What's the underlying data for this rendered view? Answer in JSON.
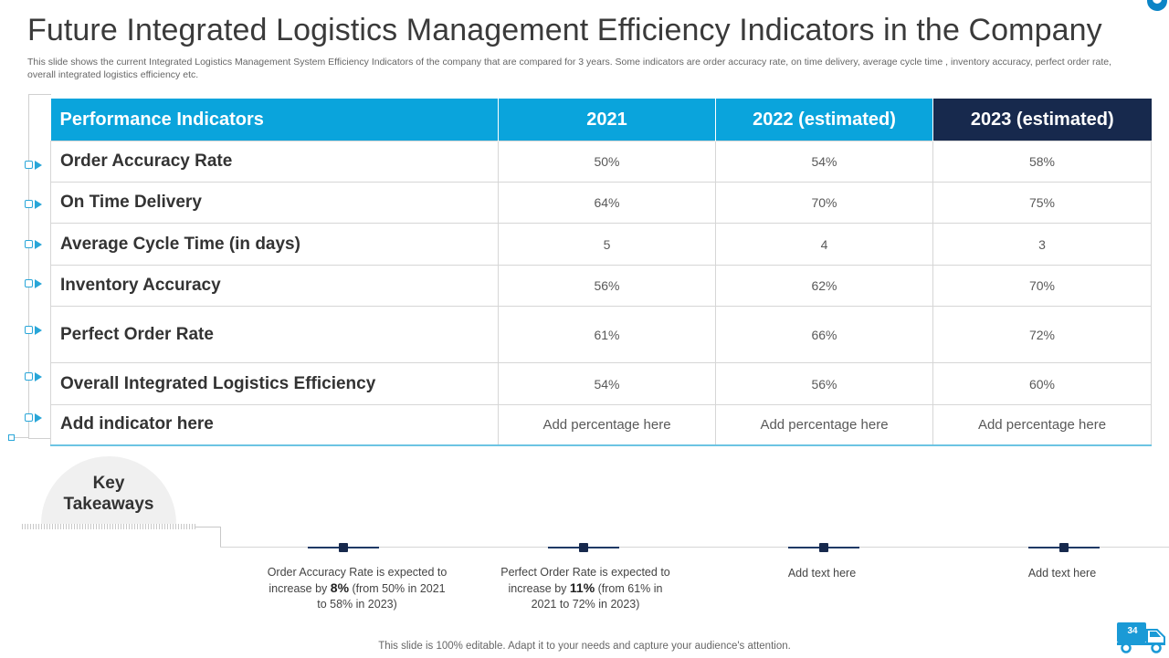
{
  "title": "Future Integrated Logistics Management Efficiency Indicators in the Company",
  "subtitle": "This slide shows the current Integrated Logistics Management System Efficiency Indicators of the company that are compared for 3 years. Some indicators are order accuracy rate, on time delivery, average cycle time , inventory accuracy, perfect order rate, overall integrated logistics efficiency etc.",
  "table": {
    "headers": [
      "Performance  Indicators",
      "2021",
      "2022 (estimated)",
      "2023 (estimated)"
    ],
    "rows": [
      {
        "label": "Order Accuracy Rate",
        "values": [
          "50%",
          "54%",
          "58%"
        ]
      },
      {
        "label": "On Time Delivery",
        "values": [
          "64%",
          "70%",
          "75%"
        ]
      },
      {
        "label": "Average Cycle Time (in days)",
        "values": [
          "5",
          "4",
          "3"
        ]
      },
      {
        "label": "Inventory Accuracy",
        "values": [
          "56%",
          "62%",
          "70%"
        ]
      },
      {
        "label": "Perfect Order Rate",
        "values": [
          "61%",
          "66%",
          "72%"
        ]
      },
      {
        "label": "Overall Integrated Logistics Efficiency",
        "values": [
          "54%",
          "56%",
          "60%"
        ]
      },
      {
        "label": "Add indicator here",
        "values": [
          "Add percentage here",
          "Add percentage here",
          "Add percentage here"
        ]
      }
    ]
  },
  "key_takeaways": {
    "title_line1": "Key",
    "title_line2": "Takeaways",
    "items": [
      {
        "pre": "Order Accuracy Rate is expected to increase by ",
        "bold": "8%",
        "post": " (from 50% in 2021 to 58% in 2023)"
      },
      {
        "pre": "Perfect Order Rate is expected to increase by ",
        "bold": "11%",
        "post": " (from 61% in 2021 to 72% in 2023)"
      },
      {
        "pre": "Add text here",
        "bold": "",
        "post": ""
      },
      {
        "pre": "Add text here",
        "bold": "",
        "post": ""
      }
    ]
  },
  "footer": "This slide is 100% editable. Adapt it to your needs and capture your audience's attention.",
  "page_number": "34",
  "colors": {
    "header_blue": "#0aa4dc",
    "header_dark": "#17294d",
    "accent": "#29a6d8"
  }
}
